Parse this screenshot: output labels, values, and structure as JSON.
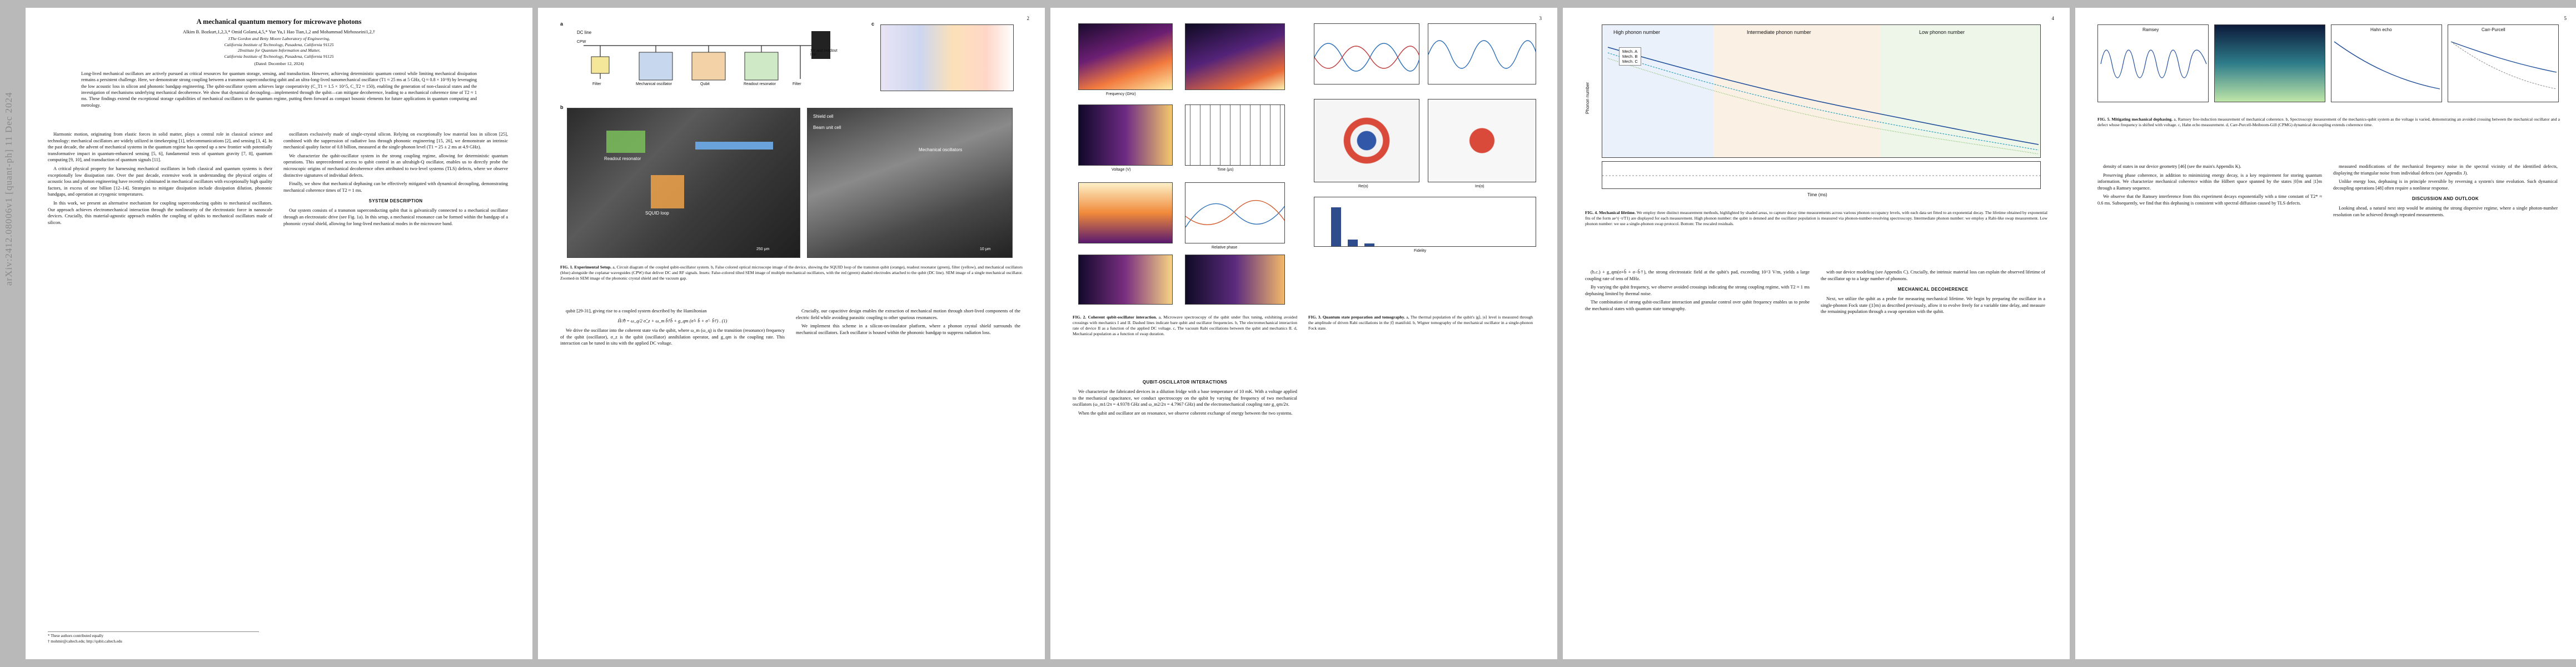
{
  "arxiv_id": "arXiv:2412.08006v1 [quant-ph] 11 Dec 2024",
  "page_numbers": [
    "2",
    "3",
    "4",
    "5"
  ],
  "paper": {
    "title": "A mechanical quantum memory for microwave photons",
    "authors": "Alkim B. Bozkurt,1,2,3,* Omid Golami,4,5,* Yue Yu,1 Hao Tian,1,2 and Mohammad Mirhosseini1,2,†",
    "affiliations": [
      "1The Gordon and Betty Moore Laboratory of Engineering,",
      "California Institute of Technology, Pasadena, California 91125",
      "2Institute for Quantum Information and Matter,",
      "California Institute of Technology, Pasadena, California 91125"
    ],
    "date": "(Dated: December 12, 2024)",
    "abstract": "Long-lived mechanical oscillators are actively pursued as critical resources for quantum storage, sensing, and transduction. However, achieving deterministic quantum control while limiting mechanical dissipation remains a persistent challenge. Here, we demonstrate strong coupling between a transmon superconducting qubit and an ultra-long-lived nanomechanical oscillator (T1 ≈ 25 ms at 5 GHz, Q ≈ 0.8 × 10^9) by leveraging the low acoustic loss in silicon and phononic bandgap engineering. The qubit-oscillator system achieves large cooperativity (C_T1 ≈ 1.5 × 10^5, C_T2 ≈ 150), enabling the generation of non-classical states and the investigation of mechanisms underlying mechanical decoherence. We show that dynamical decoupling—implemented through the qubit—can mitigate decoherence, leading to a mechanical coherence time of T2 ≈ 1 ms. These findings extend the exceptional storage capabilities of mechanical oscillators to the quantum regime, putting them forward as compact bosonic elements for future applications in quantum computing and metrology.",
    "intro": [
      "Harmonic motion, originating from elastic forces in solid matter, plays a central role in classical science and technology: mechanical oscillators are widely utilized in timekeeping [1], telecommunications [2], and sensing [3, 4]. In the past decade, the advent of mechanical systems in the quantum regime has opened up a new frontier with potentially transformative impact in quantum-enhanced sensing [5, 6], fundamental tests of quantum gravity [7, 8], quantum computing [9, 10], and transduction of quantum signals [11].",
      "A critical physical property for harnessing mechanical oscillators in both classical and quantum systems is their exceptionally low dissipation rate. Over the past decade, extensive work in understanding the physical origins of acoustic loss and phonon engineering have recently culminated in mechanical oscillators with exceptionally high quality factors, in excess of one billion [12–14]. Strategies to mitigate dissipation include dissipation dilution, phononic bandgaps, and operation at cryogenic temperatures.",
      "In this work, we present an alternative mechanism for coupling superconducting qubits to mechanical oscillators. Our approach achieves electromechanical interaction through the nonlinearity of the electrostatic force in nanoscale devices. Crucially, this material-agnostic approach enables the coupling of qubits to mechanical oscillators made of silicon."
    ],
    "col2": [
      "oscillators exclusively made of single-crystal silicon. Relying on exceptionally low material loss in silicon [25], combined with the suppression of radiative loss through phononic engineering [15, 26], we demonstrate an intrinsic mechanical quality factor of 0.8 billion, measured at the single-phonon level (T1 = 25 ± 2 ms at 4.9 GHz).",
      "We characterize the qubit-oscillator system in the strong coupling regime, allowing for deterministic quantum operations. This unprecedented access to qubit control in an ultrahigh-Q oscillator, enables us to directly probe the microscopic origins of mechanical decoherence often attributed to two-level systems (TLS) defects, where we observe distinctive signatures of individual defects.",
      "Finally, we show that mechanical dephasing can be effectively mitigated with dynamical decoupling, demonstrating mechanical coherence times of T2 ≈ 1 ms."
    ],
    "section_system": "SYSTEM DESCRIPTION",
    "system_text": "Our system consists of a transmon superconducting qubit that is galvanically connected to a mechanical oscillator through an electrostatic drive (see Fig. 1a). In this setup, a mechanical resonance can be formed within the bandgap of a phononic crystal shield, allowing for long-lived mechanical modes in the microwave band.",
    "footnotes": [
      "* These authors contributed equally",
      "† mohmir@caltech.edu; http://qubit.caltech.edu"
    ]
  },
  "page2": {
    "fig1_caption_lead": "FIG. 1. Experimental Setup.",
    "fig1_caption": "a, Circuit diagram of the coupled qubit-oscillator system. b, False colored optical microscope image of the device, showing the SQUID loop of the transmon qubit (orange), readout resonator (green), filter (yellow), and mechanical oscillators (blue) alongside the coplanar waveguides (CPW) that deliver DC and RF signals. Insets: False-colored tilted SEM image of multiple mechanical oscillators, with the red (green) shaded electrodes attached to the qubit (DC line). SEM image of a single mechanical oscillator. Zoomed-in SEM image of the phononic crystal shield and the vacuum gap.",
    "fig1_labels": [
      "a",
      "b",
      "c",
      "DC line",
      "CPW",
      "Filter",
      "Mechanical oscillator",
      "Qubit",
      "Readout resonator",
      "Filter",
      "XY and readout line",
      "Readout resonator",
      "SQUID loop",
      "Shield cell",
      "Beam unit cell",
      "Mechanical oscillators",
      "250 μm",
      "10 μm"
    ],
    "left_text": [
      "qubit [29-31], giving rise to a coupled system described by the Hamiltonian",
      "We drive the oscillator into the coherent state via the qubit, where ω_m (ω_q) is the transition (resonance) frequency of the qubit (oscillator), σ_z is the qubit (oscillator) annihilation operator, and g_qm is the coupling rate. This interaction can be tuned in situ with the applied DC voltage."
    ],
    "equation": "Ĥ/ℏ = ω_q/2 σ̂_z + ω_m b̂†b̂ + g_qm (σ̂+ b̂ + σ̂− b̂†) . (1)",
    "right_text": [
      "Crucially, our capacitive design enables the extraction of mechanical motion through short-lived components of the electric field while avoiding parasitic coupling to other spurious resonances.",
      "We implement this scheme in a silicon-on-insulator platform, where a phonon crystal shield surrounds the mechanical oscillators. Each oscillator is housed within the phononic bandgap to suppress radiation loss."
    ],
    "fig1_subtitle": "Long-lived mechanical oscillators"
  },
  "page3": {
    "fig2_caption_lead": "FIG. 2. Coherent qubit-oscillator interaction.",
    "fig2_caption": "a, Microwave spectroscopy of the qubit under flux tuning, exhibiting avoided crossings with mechanics I and II. Dashed lines indicate bare qubit and oscillator frequencies. b, The electromechanical interaction rate of device II as a function of the applied DC voltage. c, The vacuum Rabi oscillations between the qubit and mechanics II. d, Mechanical population as a function of swap duration.",
    "fig3_caption_lead": "FIG. 3. Quantum state preparation and tomography.",
    "fig3_caption": "a, The thermal population of the qubit's |g⟩, |e⟩ level is measured through the amplitude of driven Rabi oscillations in the |f⟩ manifold. b, Wigner tomography of the mechanical oscillator in a single-phonon Fock state.",
    "section_interactions": "QUBIT-OSCILLATOR INTERACTIONS",
    "interactions_text": [
      "We characterize the fabricated devices in a dilution fridge with a base temperature of 10 mK. With a voltage applied to the mechanical capacitance, we conduct spectroscopy on the qubit by varying the frequency of two mechanical oscillators (ω_m1/2π = 4.9378 GHz and ω_m2/2π = 4.7967 GHz) and the electromechanical coupling rate g_qm/2π.",
      "When the qubit and oscillator are on resonance, we observe coherent exchange of energy between the two systems."
    ],
    "fig2_axes": [
      "Frequency (GHz)",
      "Voltage (V)",
      "Time (μs)",
      "Relative phase",
      "Frequency (GHz)",
      "Frequency (GHz)"
    ],
    "fig3_axes": [
      "Re(α)",
      "Im(α)",
      "Fidelity"
    ]
  },
  "page4": {
    "fig4_caption_lead": "FIG. 4. Mechanical lifetime.",
    "fig4_caption": "We employ three distinct measurement methods, highlighted by shaded areas, to capture decay time measurements across various phonon occupancy levels, with each data set fitted to an exponential decay. The lifetime obtained by exponential fits of the form ae^(−t/T1) are displayed for each measurement. High phonon number: the qubit is detuned and the oscillator population is measured via phonon-number-resolving spectroscopy. Intermediate phonon number: we employ a Rabi-like swap measurement. Low phonon number: we use a single-phonon swap protocol. Bottom: The rescaled residuals.",
    "legend": [
      "Mech. A",
      "Mech. B",
      "Mech. C"
    ],
    "region_labels": [
      "High phonon number",
      "Intermediate phonon number",
      "Low phonon number"
    ],
    "axes": [
      "Phonon number",
      "Time (ms)"
    ],
    "text_a": [
      "(h.c.) + g_qm(σ+b̂ + σ−b̂†), the strong electrostatic field at the qubit's pad, exceeding 10^3 V/m, yields a large coupling rate of tens of MHz.",
      "By varying the qubit frequency, we observe avoided crossings indicating the strong coupling regime, with T2 ≈ 1 ms dephasing limited by thermal noise.",
      "The combination of strong qubit-oscillator interaction and granular control over qubit frequency enables us to probe the mechanical states with quantum state tomography."
    ],
    "section_decoherence": "MECHANICAL DECOHERENCE",
    "text_b": [
      "with our device modeling (see Appendix C). Crucially, the intrinsic material loss can explain the observed lifetime of the oscillator up to a large number of phonons.",
      "Next, we utilize the qubit as a probe for measuring mechanical lifetime. We begin by preparing the oscillator in a single-phonon Fock state (|1⟩m) as described previously, allow it to evolve freely for a variable time delay, and measure the remaining population through a swap operation with the qubit."
    ]
  },
  "page5": {
    "fig5_caption_lead": "FIG. 5. Mitigating mechanical dephasing.",
    "fig5_caption": "a, Ramsey free-induction measurement of mechanical coherence. b, Spectroscopy measurement of the mechanics-qubit system as the voltage is varied, demonstrating an avoided crossing between the mechanical oscillator and a defect whose frequency is shifted with voltage. c, Hahn echo measurement. d, Carr-Purcell-Meiboom-Gill (CPMG) dynamical decoupling extends coherence time.",
    "panel_titles": [
      "Ramsey",
      "Hahn echo",
      "Carr-Purcell"
    ],
    "section_discussion": "DISCUSSION AND OUTLOOK",
    "text_a": [
      "density of states in our device geometry [46] (see the main's Appendix K).",
      "Preserving phase coherence, in addition to minimizing energy decay, is a key requirement for storing quantum information. We characterize mechanical coherence within the Hilbert space spanned by the states |0⟩m and |1⟩m through a Ramsey sequence.",
      "We observe that the Ramsey interference from this experiment decays exponentially with a time constant of T2* ≈ 0.6 ms. Subsequently, we find that this dephasing is consistent with spectral diffusion caused by TLS defects."
    ],
    "text_b": [
      "measured modifications of the mechanical frequency noise in the spectral vicinity of the identified defects, displaying the triangular noise from individual defects (see Appendix J).",
      "Unlike energy loss, dephasing is in principle reversible by reversing a system's time evolution. Such dynamical decoupling operations [48] often require a nonlinear response.",
      "Looking ahead, a natural next step would be attaining the strong dispersive regime, where a single photon-number resolution can be achieved through repeated measurements."
    ]
  }
}
